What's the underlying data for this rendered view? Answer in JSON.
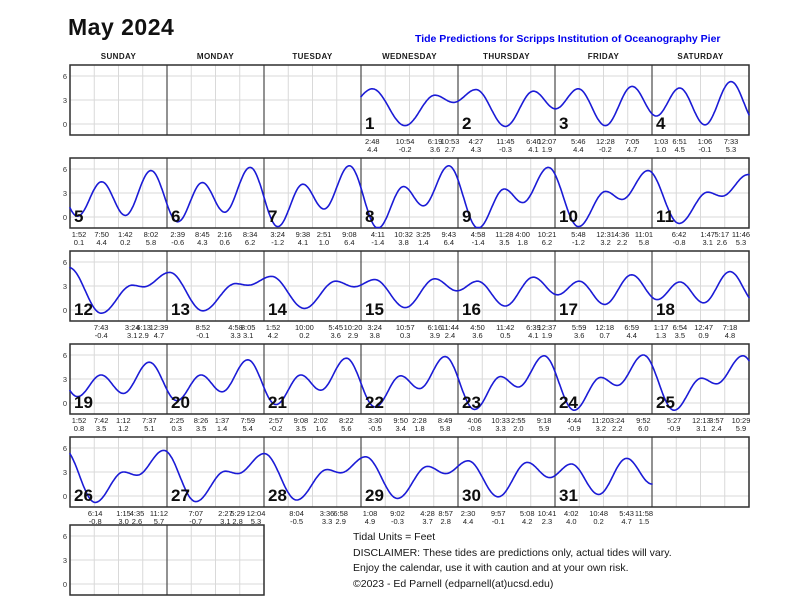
{
  "title": "May 2024",
  "subtitle": "Tide Predictions for Scripps Institution of Oceanography Pier",
  "day_headers": [
    "SUNDAY",
    "MONDAY",
    "TUESDAY",
    "WEDNESDAY",
    "THURSDAY",
    "FRIDAY",
    "SATURDAY"
  ],
  "footer": {
    "units": "Tidal Units = Feet",
    "disclaimer": "DISCLAIMER: These tides are predictions only, actual tides will vary.",
    "enjoy": "Enjoy the calendar, use it with caution and at your own risk.",
    "copyright": "©2023 - Ed Parnell (edparnell(at)ucsd.edu)"
  },
  "colors": {
    "curve": "#1b1bd6",
    "subtitle_blue": "#0000ee",
    "grid_light": "#d9d9d9",
    "day_divider": "#4a4a4a",
    "outer_border": "#2f2f2f"
  },
  "chart_data": {
    "type": "line",
    "title": "May 2024 tide predictions, Scripps Institution of Oceanography Pier",
    "ylabel": "Tide height (feet)",
    "ylim": [
      -1.4,
      7.4
    ],
    "y_ticks": [
      6,
      3,
      0
    ],
    "x_axis": "hour of day within each calendar day cell (0-24h), cells subdivided every 6h",
    "legend_position": "none",
    "grid": true,
    "layout": {
      "first_weekday_col": 3,
      "weeks": 5,
      "extra_empty_row_cells": 2
    },
    "boundary": {
      "before": {
        "hour_abs": -3.2,
        "height": 2.2
      },
      "after": {
        "hour_abs": 747,
        "height": 4.3
      }
    },
    "days": [
      {
        "day": 1,
        "tides": [
          {
            "time": "2:48",
            "height": 4.4,
            "hour": 2.8
          },
          {
            "time": "10:54",
            "height": -0.2,
            "hour": 10.9
          },
          {
            "time": "6:19",
            "height": 3.6,
            "hour": 18.32
          },
          {
            "time": "10:53",
            "height": 2.7,
            "hour": 22.88
          }
        ]
      },
      {
        "day": 2,
        "tides": [
          {
            "time": "4:27",
            "height": 4.3,
            "hour": 4.45
          },
          {
            "time": "11:45",
            "height": -0.3,
            "hour": 11.75
          },
          {
            "time": "6:40",
            "height": 4.1,
            "hour": 18.67
          },
          {
            "time": "12:07",
            "height": 1.9,
            "hour": 24.12
          }
        ]
      },
      {
        "day": 3,
        "tides": [
          {
            "time": "5:46",
            "height": 4.4,
            "hour": 5.77
          },
          {
            "time": "12:28",
            "height": -0.2,
            "hour": 12.47
          },
          {
            "time": "7:05",
            "height": 4.7,
            "hour": 19.08
          }
        ]
      },
      {
        "day": 4,
        "tides": [
          {
            "time": "1:03",
            "height": 1.0,
            "hour": 1.05
          },
          {
            "time": "6:51",
            "height": 4.5,
            "hour": 6.85
          },
          {
            "time": "1:06",
            "height": -0.1,
            "hour": 13.1
          },
          {
            "time": "7:33",
            "height": 5.3,
            "hour": 19.55
          }
        ]
      },
      {
        "day": 5,
        "tides": [
          {
            "time": "1:52",
            "height": 0.1,
            "hour": 1.87
          },
          {
            "time": "7:50",
            "height": 4.4,
            "hour": 7.83
          },
          {
            "time": "1:42",
            "height": 0.2,
            "hour": 13.7
          },
          {
            "time": "8:02",
            "height": 5.8,
            "hour": 20.03
          }
        ]
      },
      {
        "day": 6,
        "tides": [
          {
            "time": "2:39",
            "height": -0.6,
            "hour": 2.65
          },
          {
            "time": "8:45",
            "height": 4.3,
            "hour": 8.75
          },
          {
            "time": "2:16",
            "height": 0.6,
            "hour": 14.27
          },
          {
            "time": "8:34",
            "height": 6.2,
            "hour": 20.57
          }
        ]
      },
      {
        "day": 7,
        "tides": [
          {
            "time": "3:24",
            "height": -1.2,
            "hour": 3.4
          },
          {
            "time": "9:38",
            "height": 4.1,
            "hour": 9.63
          },
          {
            "time": "2:51",
            "height": 1.0,
            "hour": 14.85
          },
          {
            "time": "9:08",
            "height": 6.4,
            "hour": 21.13
          }
        ]
      },
      {
        "day": 8,
        "tides": [
          {
            "time": "4:11",
            "height": -1.4,
            "hour": 4.18
          },
          {
            "time": "10:32",
            "height": 3.8,
            "hour": 10.53
          },
          {
            "time": "3:25",
            "height": 1.4,
            "hour": 15.42
          },
          {
            "time": "9:43",
            "height": 6.4,
            "hour": 21.72
          }
        ]
      },
      {
        "day": 9,
        "tides": [
          {
            "time": "4:58",
            "height": -1.4,
            "hour": 4.97
          },
          {
            "time": "11:28",
            "height": 3.5,
            "hour": 11.47
          },
          {
            "time": "4:00",
            "height": 1.8,
            "hour": 16.0
          },
          {
            "time": "10:21",
            "height": 6.2,
            "hour": 22.35
          }
        ]
      },
      {
        "day": 10,
        "tides": [
          {
            "time": "5:48",
            "height": -1.2,
            "hour": 5.8
          },
          {
            "time": "12:31",
            "height": 3.2,
            "hour": 12.52
          },
          {
            "time": "4:36",
            "height": 2.2,
            "hour": 16.6
          },
          {
            "time": "11:01",
            "height": 5.8,
            "hour": 23.02
          }
        ]
      },
      {
        "day": 11,
        "tides": [
          {
            "time": "6:42",
            "height": -0.8,
            "hour": 6.7
          },
          {
            "time": "1:47",
            "height": 3.1,
            "hour": 13.78
          },
          {
            "time": "5:17",
            "height": 2.6,
            "hour": 17.28
          },
          {
            "time": "11:46",
            "height": 5.3,
            "hour": 23.77
          }
        ]
      },
      {
        "day": 12,
        "tides": [
          {
            "time": "7:43",
            "height": -0.4,
            "hour": 7.72
          },
          {
            "time": "3:24",
            "height": 3.1,
            "hour": 15.4
          },
          {
            "time": "6:13",
            "height": 2.9,
            "hour": 18.22
          },
          {
            "time": "12:39",
            "height": 4.7,
            "hour": 24.65
          }
        ]
      },
      {
        "day": 13,
        "tides": [
          {
            "time": "8:52",
            "height": -0.1,
            "hour": 8.87
          },
          {
            "time": "4:58",
            "height": 3.3,
            "hour": 16.97
          },
          {
            "time": "8:05",
            "height": 3.1,
            "hour": 20.08
          }
        ]
      },
      {
        "day": 14,
        "tides": [
          {
            "time": "1:52",
            "height": 4.2,
            "hour": 1.87
          },
          {
            "time": "10:00",
            "height": 0.2,
            "hour": 10.0
          },
          {
            "time": "5:45",
            "height": 3.6,
            "hour": 17.75
          },
          {
            "time": "10:20",
            "height": 2.9,
            "hour": 22.33
          }
        ]
      },
      {
        "day": 15,
        "tides": [
          {
            "time": "3:24",
            "height": 3.8,
            "hour": 3.4
          },
          {
            "time": "10:57",
            "height": 0.3,
            "hour": 10.95
          },
          {
            "time": "6:16",
            "height": 3.9,
            "hour": 18.27
          },
          {
            "time": "11:44",
            "height": 2.4,
            "hour": 23.73
          }
        ]
      },
      {
        "day": 16,
        "tides": [
          {
            "time": "4:50",
            "height": 3.6,
            "hour": 4.83
          },
          {
            "time": "11:42",
            "height": 0.5,
            "hour": 11.7
          },
          {
            "time": "6:39",
            "height": 4.1,
            "hour": 18.65
          },
          {
            "time": "12:37",
            "height": 1.9,
            "hour": 24.62
          }
        ]
      },
      {
        "day": 17,
        "tides": [
          {
            "time": "5:59",
            "height": 3.6,
            "hour": 5.98
          },
          {
            "time": "12:18",
            "height": 0.7,
            "hour": 12.3
          },
          {
            "time": "6:59",
            "height": 4.4,
            "hour": 18.98
          }
        ]
      },
      {
        "day": 18,
        "tides": [
          {
            "time": "1:17",
            "height": 1.3,
            "hour": 1.28
          },
          {
            "time": "6:54",
            "height": 3.5,
            "hour": 6.9
          },
          {
            "time": "12:47",
            "height": 0.9,
            "hour": 12.78
          },
          {
            "time": "7:18",
            "height": 4.8,
            "hour": 19.3
          }
        ]
      },
      {
        "day": 19,
        "tides": [
          {
            "time": "1:52",
            "height": 0.8,
            "hour": 1.87
          },
          {
            "time": "7:42",
            "height": 3.5,
            "hour": 7.7
          },
          {
            "time": "1:12",
            "height": 1.2,
            "hour": 13.2
          },
          {
            "time": "7:37",
            "height": 5.1,
            "hour": 19.62
          }
        ]
      },
      {
        "day": 20,
        "tides": [
          {
            "time": "2:25",
            "height": 0.3,
            "hour": 2.42
          },
          {
            "time": "8:26",
            "height": 3.5,
            "hour": 8.43
          },
          {
            "time": "1:37",
            "height": 1.4,
            "hour": 13.62
          },
          {
            "time": "7:59",
            "height": 5.4,
            "hour": 19.98
          }
        ]
      },
      {
        "day": 21,
        "tides": [
          {
            "time": "2:57",
            "height": -0.2,
            "hour": 2.95
          },
          {
            "time": "9:08",
            "height": 3.5,
            "hour": 9.13
          },
          {
            "time": "2:02",
            "height": 1.6,
            "hour": 14.03
          },
          {
            "time": "8:22",
            "height": 5.6,
            "hour": 20.37
          }
        ]
      },
      {
        "day": 22,
        "tides": [
          {
            "time": "3:30",
            "height": -0.5,
            "hour": 3.5
          },
          {
            "time": "9:50",
            "height": 3.4,
            "hour": 9.83
          },
          {
            "time": "2:28",
            "height": 1.8,
            "hour": 14.47
          },
          {
            "time": "8:49",
            "height": 5.8,
            "hour": 20.82
          }
        ]
      },
      {
        "day": 23,
        "tides": [
          {
            "time": "4:06",
            "height": -0.8,
            "hour": 4.1
          },
          {
            "time": "10:33",
            "height": 3.3,
            "hour": 10.55
          },
          {
            "time": "2:55",
            "height": 2.0,
            "hour": 14.92
          },
          {
            "time": "9:18",
            "height": 5.9,
            "hour": 21.3
          }
        ]
      },
      {
        "day": 24,
        "tides": [
          {
            "time": "4:44",
            "height": -0.9,
            "hour": 4.73
          },
          {
            "time": "11:20",
            "height": 3.2,
            "hour": 11.33
          },
          {
            "time": "3:24",
            "height": 2.2,
            "hour": 15.4
          },
          {
            "time": "9:52",
            "height": 6.0,
            "hour": 21.87
          }
        ]
      },
      {
        "day": 25,
        "tides": [
          {
            "time": "5:27",
            "height": -0.9,
            "hour": 5.45
          },
          {
            "time": "12:13",
            "height": 3.1,
            "hour": 12.22
          },
          {
            "time": "3:57",
            "height": 2.4,
            "hour": 15.95
          },
          {
            "time": "10:29",
            "height": 5.9,
            "hour": 22.48
          }
        ]
      },
      {
        "day": 26,
        "tides": [
          {
            "time": "6:14",
            "height": -0.8,
            "hour": 6.23
          },
          {
            "time": "1:15",
            "height": 3.0,
            "hour": 13.25
          },
          {
            "time": "4:35",
            "height": 2.6,
            "hour": 16.58
          },
          {
            "time": "11:12",
            "height": 5.7,
            "hour": 23.2
          }
        ]
      },
      {
        "day": 27,
        "tides": [
          {
            "time": "7:07",
            "height": -0.7,
            "hour": 7.12
          },
          {
            "time": "2:27",
            "height": 3.1,
            "hour": 14.45
          },
          {
            "time": "5:29",
            "height": 2.8,
            "hour": 17.48
          },
          {
            "time": "12:04",
            "height": 5.3,
            "hour": 24.07
          }
        ]
      },
      {
        "day": 28,
        "tides": [
          {
            "time": "8:04",
            "height": -0.5,
            "hour": 8.07
          },
          {
            "time": "3:36",
            "height": 3.3,
            "hour": 15.6
          },
          {
            "time": "6:58",
            "height": 2.9,
            "hour": 18.97
          }
        ]
      },
      {
        "day": 29,
        "tides": [
          {
            "time": "1:08",
            "height": 4.9,
            "hour": 1.13
          },
          {
            "time": "9:02",
            "height": -0.3,
            "hour": 9.03
          },
          {
            "time": "4:28",
            "height": 3.7,
            "hour": 16.47
          },
          {
            "time": "8:57",
            "height": 2.8,
            "hour": 20.95
          }
        ]
      },
      {
        "day": 30,
        "tides": [
          {
            "time": "2:30",
            "height": 4.4,
            "hour": 2.5
          },
          {
            "time": "9:57",
            "height": -0.1,
            "hour": 9.95
          },
          {
            "time": "5:08",
            "height": 4.2,
            "hour": 17.13
          },
          {
            "time": "10:41",
            "height": 2.3,
            "hour": 22.68
          }
        ]
      },
      {
        "day": 31,
        "tides": [
          {
            "time": "4:02",
            "height": 4.0,
            "hour": 4.03
          },
          {
            "time": "10:48",
            "height": 0.2,
            "hour": 10.8
          },
          {
            "time": "5:43",
            "height": 4.7,
            "hour": 17.72
          },
          {
            "time": "11:58",
            "height": 1.5,
            "hour": 23.97
          }
        ]
      }
    ]
  }
}
